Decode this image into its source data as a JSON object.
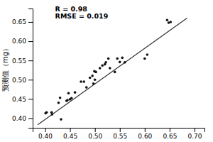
{
  "chart_data": {
    "type": "scatter",
    "ylabel": "预测值（mg）",
    "series": [
      {
        "type": "line",
        "color": "#333333",
        "x": [
          0.385,
          0.685
        ],
        "values": [
          0.383,
          0.66
        ]
      },
      {
        "type": "scatter",
        "color": "#111111",
        "x": [
          0.401,
          0.403,
          0.413,
          0.414,
          0.427,
          0.43,
          0.432,
          0.443,
          0.445,
          0.447,
          0.45,
          0.453,
          0.46,
          0.472,
          0.478,
          0.483,
          0.49,
          0.495,
          0.497,
          0.499,
          0.5,
          0.502,
          0.51,
          0.515,
          0.52,
          0.522,
          0.527,
          0.53,
          0.54,
          0.545,
          0.55,
          0.555,
          0.56,
          0.6,
          0.605,
          0.645,
          0.648,
          0.652
        ],
        "values": [
          0.413,
          0.415,
          0.415,
          0.41,
          0.44,
          0.453,
          0.397,
          0.445,
          0.447,
          0.465,
          0.449,
          0.452,
          0.467,
          0.495,
          0.495,
          0.48,
          0.505,
          0.51,
          0.49,
          0.522,
          0.5,
          0.52,
          0.53,
          0.537,
          0.54,
          0.545,
          0.555,
          0.53,
          0.52,
          0.555,
          0.546,
          0.557,
          0.545,
          0.555,
          0.565,
          0.655,
          0.648,
          0.65
        ]
      }
    ],
    "annotations": [
      {
        "text": "R = 0.98",
        "x": 0.42,
        "y": 0.678
      },
      {
        "text": "RMSE = 0.019",
        "x": 0.42,
        "y": 0.66
      }
    ],
    "xlim": [
      0.375,
      0.72
    ],
    "ylim": [
      0.375,
      0.685
    ],
    "xticks": [
      {
        "value": 0.4,
        "label": "0.40"
      },
      0.45,
      {
        "value": 0.5,
        "label": "0.50"
      },
      0.55,
      {
        "value": 0.6,
        "label": "0.60"
      },
      0.65,
      {
        "value": 0.7,
        "label": "0.70"
      }
    ],
    "yticks": [
      {
        "value": 0.4,
        "label": "0.40"
      },
      0.45,
      {
        "value": 0.5,
        "label": "0.50"
      },
      0.55,
      {
        "value": 0.6,
        "label": "0.60"
      },
      0.65
    ],
    "grid": false
  }
}
